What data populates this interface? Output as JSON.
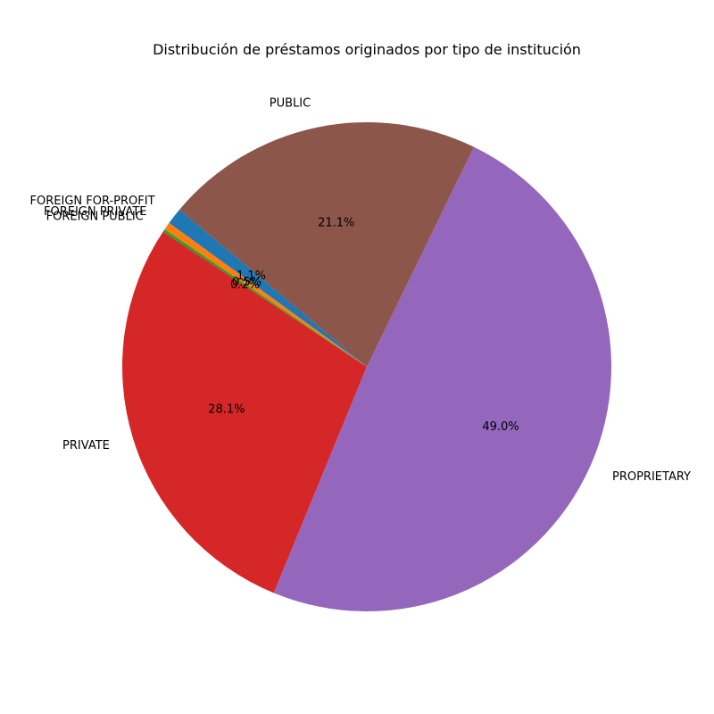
{
  "chart_data": {
    "type": "pie",
    "title": "Distribución de préstamos originados por tipo de institución",
    "start_angle_deg": 140,
    "direction": "counterclockwise",
    "slices": [
      {
        "label": "FOREIGN FOR-PROFIT",
        "pct_text": "1.1%",
        "value": 1.1,
        "color": "#1f77b4"
      },
      {
        "label": "FOREIGN PRIVATE",
        "pct_text": "0.5%",
        "value": 0.5,
        "color": "#ff7f0e"
      },
      {
        "label": "FOREIGN PUBLIC",
        "pct_text": "0.2%",
        "value": 0.2,
        "color": "#2ca02c"
      },
      {
        "label": "PRIVATE",
        "pct_text": "28.1%",
        "value": 28.1,
        "color": "#d62728"
      },
      {
        "label": "PROPRIETARY",
        "pct_text": "49.0%",
        "value": 49.0,
        "color": "#9467bd"
      },
      {
        "label": "PUBLIC",
        "pct_text": "21.1%",
        "value": 21.1,
        "color": "#8c564b"
      }
    ]
  }
}
